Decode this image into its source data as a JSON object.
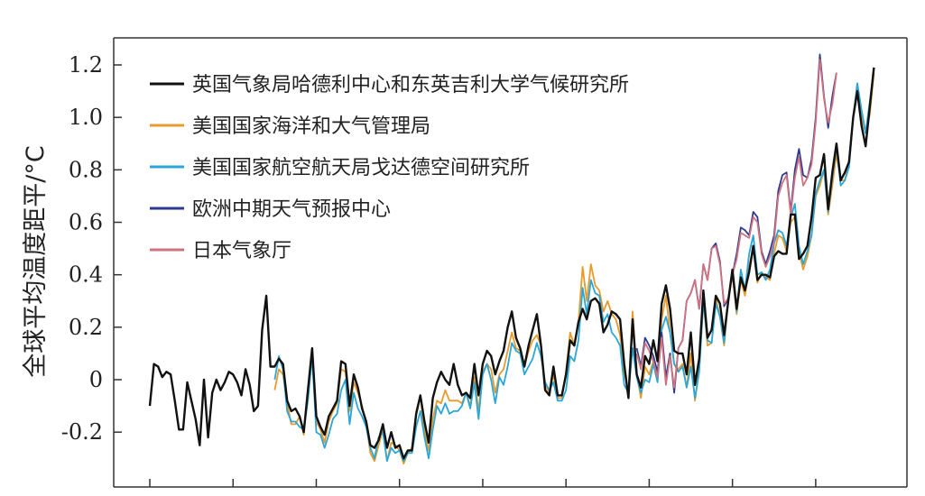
{
  "chart_data": {
    "type": "line",
    "ylabel": "全球平均温度距平/°C",
    "xlabel": "",
    "title": "",
    "xlim": [
      1850,
      2023
    ],
    "ylim": [
      -0.4,
      1.3
    ],
    "x_ticks": [
      1850,
      1870,
      1890,
      1910,
      1930,
      1950,
      1970,
      1990,
      2010
    ],
    "y_ticks": [
      {
        "value": 1.2,
        "label": "1.2"
      },
      {
        "value": 1.0,
        "label": "1.0"
      },
      {
        "value": 0.8,
        "label": "0.8"
      },
      {
        "value": 0.6,
        "label": "0.6"
      },
      {
        "value": 0.4,
        "label": "0.4"
      },
      {
        "value": 0.2,
        "label": "0.2"
      },
      {
        "value": 0.0,
        "label": "0"
      },
      {
        "value": -0.2,
        "label": "-0.2"
      }
    ],
    "grid": false,
    "legend_position": "top-left",
    "series": [
      {
        "name": "英国气象局哈德利中心和东英吉利大学气候研究所",
        "color": "#111111",
        "x_start": 1850,
        "values": [
          -0.1,
          0.06,
          0.05,
          0.01,
          0.03,
          0.02,
          -0.08,
          -0.19,
          -0.19,
          -0.01,
          -0.08,
          -0.15,
          -0.25,
          0.0,
          -0.22,
          -0.05,
          0.0,
          -0.04,
          -0.01,
          0.03,
          0.02,
          -0.01,
          -0.06,
          0.04,
          -0.02,
          -0.12,
          -0.1,
          0.19,
          0.32,
          0.05,
          0.05,
          0.08,
          0.06,
          -0.08,
          -0.12,
          -0.11,
          -0.14,
          -0.2,
          -0.04,
          0.12,
          -0.14,
          -0.18,
          -0.21,
          -0.14,
          -0.11,
          -0.08,
          0.07,
          0.06,
          -0.1,
          0.02,
          -0.03,
          -0.11,
          -0.16,
          -0.25,
          -0.26,
          -0.23,
          -0.17,
          -0.26,
          -0.2,
          -0.26,
          -0.25,
          -0.3,
          -0.27,
          -0.27,
          -0.13,
          -0.06,
          -0.16,
          -0.24,
          -0.07,
          -0.01,
          0.03,
          0.0,
          -0.02,
          0.06,
          -0.02,
          -0.06,
          -0.05,
          -0.07,
          0.06,
          -0.06,
          0.06,
          0.11,
          0.09,
          0.02,
          0.07,
          0.11,
          0.2,
          0.26,
          0.16,
          0.12,
          0.05,
          0.13,
          0.19,
          0.25,
          0.13,
          -0.04,
          -0.06,
          0.05,
          -0.06,
          -0.06,
          0.02,
          0.15,
          0.13,
          0.22,
          0.27,
          0.23,
          0.3,
          0.31,
          0.29,
          0.18,
          0.21,
          0.26,
          0.25,
          0.23,
          0.06,
          -0.07,
          0.23,
          0.02,
          -0.03,
          0.09,
          0.06,
          0.15,
          0.07,
          0.29,
          0.36,
          0.27,
          0.11,
          0.1,
          0.1,
          0.02,
          0.18,
          -0.02,
          0.08,
          0.34,
          0.16,
          0.19,
          0.32,
          0.29,
          0.17,
          0.3,
          0.42,
          0.27,
          0.39,
          0.34,
          0.41,
          0.51,
          0.38,
          0.4,
          0.4,
          0.39,
          0.47,
          0.49,
          0.48,
          0.48,
          0.63,
          0.63,
          0.46,
          0.48,
          0.51,
          0.62,
          0.77,
          0.78,
          0.86,
          0.65,
          0.79,
          0.9,
          0.76,
          0.79,
          0.83,
          1.0,
          1.1,
          0.97,
          0.89,
          1.04,
          1.19
        ]
      },
      {
        "name": "美国国家海洋和大气管理局",
        "color": "#e89a2b",
        "x_start": 1880,
        "values": [
          -0.04,
          0.04,
          0.02,
          -0.09,
          -0.17,
          -0.17,
          -0.14,
          -0.21,
          -0.05,
          0.1,
          -0.16,
          -0.19,
          -0.24,
          -0.16,
          -0.12,
          -0.09,
          0.04,
          0.03,
          -0.12,
          -0.01,
          -0.05,
          -0.1,
          -0.17,
          -0.28,
          -0.31,
          -0.25,
          -0.19,
          -0.31,
          -0.24,
          -0.25,
          -0.27,
          -0.32,
          -0.28,
          -0.26,
          -0.12,
          -0.06,
          -0.2,
          -0.27,
          -0.15,
          -0.08,
          -0.09,
          -0.04,
          -0.08,
          -0.08,
          -0.08,
          -0.09,
          -0.05,
          -0.1,
          0.01,
          -0.12,
          0.03,
          0.06,
          0.04,
          -0.05,
          0.02,
          0.04,
          0.11,
          0.18,
          0.12,
          0.11,
          0.05,
          0.11,
          0.15,
          0.17,
          0.13,
          -0.02,
          -0.05,
          0.02,
          -0.07,
          -0.07,
          0.03,
          0.18,
          0.13,
          0.22,
          0.43,
          0.3,
          0.44,
          0.36,
          0.34,
          0.26,
          0.3,
          0.25,
          0.23,
          0.17,
          0.03,
          -0.05,
          0.26,
          0.02,
          -0.07,
          0.05,
          0.02,
          0.07,
          0.0,
          0.23,
          0.32,
          0.18,
          0.06,
          0.04,
          0.06,
          -0.03,
          0.1,
          -0.08,
          0.04,
          0.3,
          0.13,
          0.14,
          0.31,
          0.24,
          0.13,
          0.3,
          0.4,
          0.25,
          0.38,
          0.32,
          0.43,
          0.51,
          0.37,
          0.41,
          0.39,
          0.38,
          0.48,
          0.55,
          0.54,
          0.49,
          0.6,
          0.62,
          0.49,
          0.42,
          0.47,
          0.55,
          0.7,
          0.74,
          0.8,
          0.63,
          0.74,
          0.86,
          0.76,
          0.76,
          0.83,
          1.0,
          1.13,
          1.0,
          0.94,
          1.01,
          1.17
        ]
      },
      {
        "name": "美国国家航空航天局戈达德空间研究所",
        "color": "#2aa6d8",
        "x_start": 1880,
        "values": [
          0.0,
          0.09,
          0.04,
          -0.12,
          -0.16,
          -0.16,
          -0.18,
          -0.19,
          -0.08,
          0.09,
          -0.2,
          -0.21,
          -0.26,
          -0.21,
          -0.15,
          -0.13,
          -0.04,
          0.0,
          -0.17,
          -0.05,
          -0.11,
          -0.14,
          -0.18,
          -0.26,
          -0.3,
          -0.22,
          -0.2,
          -0.31,
          -0.26,
          -0.28,
          -0.27,
          -0.31,
          -0.28,
          -0.28,
          -0.18,
          -0.12,
          -0.22,
          -0.3,
          -0.19,
          -0.1,
          -0.13,
          -0.09,
          -0.13,
          -0.12,
          -0.12,
          -0.1,
          -0.05,
          -0.11,
          -0.01,
          -0.15,
          0.02,
          0.06,
          0.0,
          -0.09,
          0.01,
          -0.02,
          0.05,
          0.14,
          0.11,
          0.1,
          0.02,
          0.05,
          0.08,
          0.14,
          0.09,
          -0.01,
          -0.04,
          -0.01,
          -0.08,
          -0.08,
          -0.04,
          0.09,
          0.07,
          0.15,
          0.35,
          0.25,
          0.38,
          0.33,
          0.32,
          0.22,
          0.25,
          0.18,
          0.16,
          0.13,
          -0.02,
          -0.05,
          0.12,
          0.01,
          -0.05,
          0.0,
          -0.01,
          0.06,
          -0.01,
          0.19,
          0.24,
          0.18,
          0.06,
          0.03,
          0.05,
          -0.03,
          0.05,
          -0.07,
          0.03,
          0.3,
          0.15,
          0.14,
          0.29,
          0.24,
          0.14,
          0.31,
          0.41,
          0.26,
          0.42,
          0.34,
          0.48,
          0.55,
          0.4,
          0.41,
          0.38,
          0.42,
          0.52,
          0.57,
          0.56,
          0.51,
          0.62,
          0.67,
          0.51,
          0.44,
          0.49,
          0.55,
          0.71,
          0.76,
          0.8,
          0.64,
          0.77,
          0.89,
          0.74,
          0.76,
          0.81,
          1.0,
          1.13,
          1.03,
          0.94,
          1.06,
          1.19
        ]
      },
      {
        "name": "欧洲中期天气预报中心",
        "color": "#2b3a8f",
        "x_start": 1967,
        "values": [
          0.12,
          0.05,
          0.16,
          0.13,
          0.09,
          0.03,
          0.18,
          0.01,
          0.1,
          -0.05,
          0.12,
          0.15,
          0.3,
          0.33,
          0.38,
          0.27,
          0.44,
          0.38,
          0.5,
          0.52,
          0.45,
          0.28,
          0.31,
          0.4,
          0.48,
          0.58,
          0.57,
          0.55,
          0.64,
          0.62,
          0.49,
          0.44,
          0.49,
          0.55,
          0.72,
          0.78,
          0.79,
          0.64,
          0.8,
          0.88,
          0.78,
          0.77,
          0.84,
          1.0,
          1.24,
          1.08,
          0.96,
          1.08,
          1.17
        ]
      },
      {
        "name": "日本气象厅",
        "color": "#d0727f",
        "x_start": 1967,
        "values": [
          0.1,
          0.04,
          0.14,
          0.11,
          0.07,
          0.01,
          0.16,
          -0.02,
          0.09,
          -0.03,
          0.12,
          0.15,
          0.3,
          0.33,
          0.38,
          0.27,
          0.44,
          0.38,
          0.5,
          0.51,
          0.44,
          0.29,
          0.31,
          0.4,
          0.46,
          0.56,
          0.55,
          0.54,
          0.62,
          0.6,
          0.48,
          0.43,
          0.47,
          0.53,
          0.7,
          0.75,
          0.78,
          0.63,
          0.77,
          0.85,
          0.74,
          0.77,
          0.82,
          0.98,
          1.22,
          1.07,
          0.98,
          1.05,
          1.17
        ]
      }
    ]
  }
}
